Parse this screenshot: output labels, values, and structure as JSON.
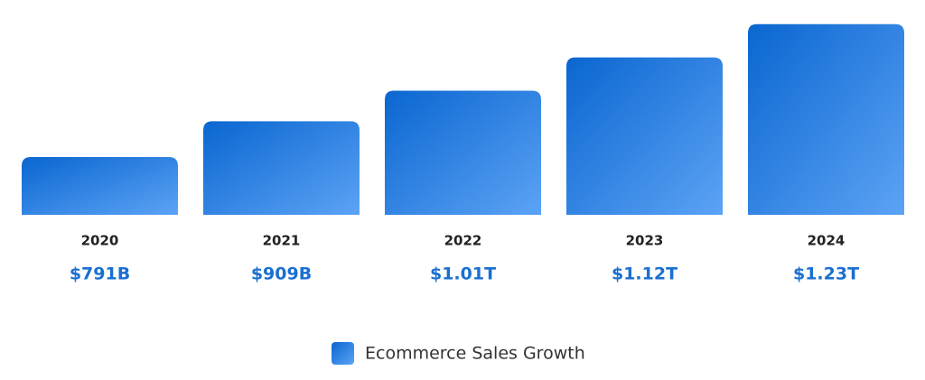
{
  "chart_data": {
    "type": "bar",
    "categories": [
      "2020",
      "2021",
      "2022",
      "2023",
      "2024"
    ],
    "series": [
      {
        "name": "Ecommerce Sales Growth",
        "values": [
          791,
          909,
          1010,
          1120,
          1230
        ],
        "value_labels": [
          "$791B",
          "$909B",
          "$1.01T",
          "$1.12T",
          "$1.23T"
        ],
        "gradient": [
          "#0a66d0",
          "#5ca3f5"
        ]
      }
    ],
    "ylim": [
      600,
      1250
    ],
    "legend": "bottom"
  }
}
